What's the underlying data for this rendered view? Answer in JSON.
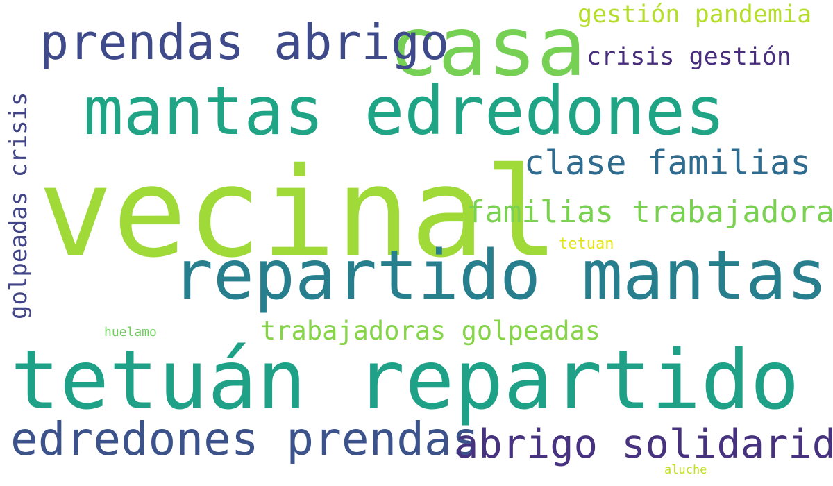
{
  "words": [
    {
      "key": "vecinal",
      "text": "vecinal",
      "color": "#a0da39"
    },
    {
      "key": "tetuan_repartido",
      "text": "tetuán repartido",
      "color": "#1fa187"
    },
    {
      "key": "repartido_mantas",
      "text": "repartido mantas",
      "color": "#277f8e"
    },
    {
      "key": "mantas_edredones",
      "text": "mantas edredones",
      "color": "#20a486"
    },
    {
      "key": "casa",
      "text": "casa",
      "color": "#75d054"
    },
    {
      "key": "prendas_abrigo",
      "text": "prendas abrigo",
      "color": "#3e4a89"
    },
    {
      "key": "edredones_prendas",
      "text": "edredones prendas",
      "color": "#3b528b"
    },
    {
      "key": "abrigo_solidaridad",
      "text": "abrigo solidaridad",
      "color": "#46327e"
    },
    {
      "key": "clase_familias",
      "text": "clase familias",
      "color": "#2f6b8e"
    },
    {
      "key": "familias_trabajadoras",
      "text": "familias trabajadoras",
      "color": "#7ad151"
    },
    {
      "key": "trabajadoras_golpeadas",
      "text": "trabajadoras golpeadas",
      "color": "#86d549"
    },
    {
      "key": "gestion_pandemia",
      "text": "gestión pandemia",
      "color": "#b5de2b"
    },
    {
      "key": "crisis_gestion",
      "text": "crisis gestión",
      "color": "#472d7b"
    },
    {
      "key": "golpeadas_crisis",
      "text": "golpeadas crisis",
      "color": "#414487"
    },
    {
      "key": "tetuan",
      "text": "tetuan",
      "color": "#e5e419"
    },
    {
      "key": "huelamo",
      "text": "huelamo",
      "color": "#6ccd5a"
    },
    {
      "key": "aluche",
      "text": "aluche",
      "color": "#c2df23"
    }
  ]
}
